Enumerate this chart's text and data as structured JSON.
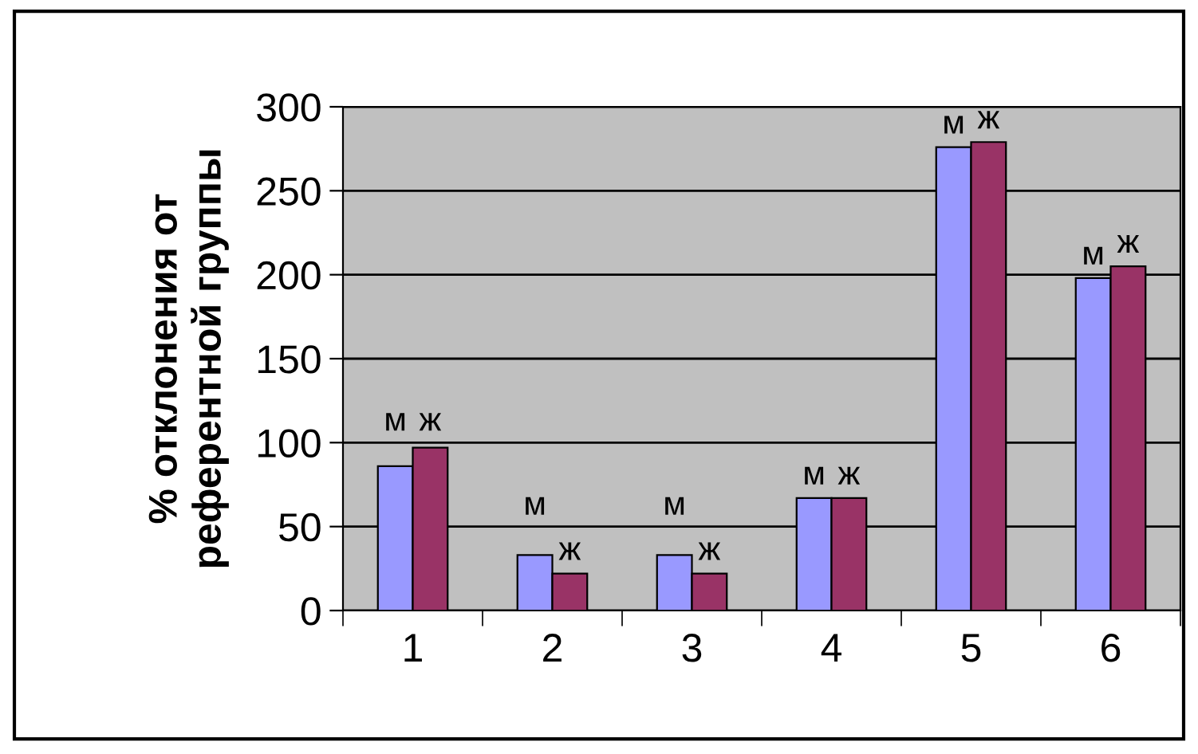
{
  "chart_data": {
    "type": "bar",
    "ylabel": "% отклонения от\nреферентной группы",
    "categories": [
      "1",
      "2",
      "3",
      "4",
      "5",
      "6"
    ],
    "series": [
      {
        "name": "м",
        "color": "#9999ff",
        "values": [
          86,
          33,
          33,
          67,
          276,
          198
        ]
      },
      {
        "name": "ж",
        "color": "#993366",
        "values": [
          97,
          22,
          22,
          67,
          279,
          205
        ]
      }
    ],
    "ylim": [
      0,
      300
    ],
    "yticks": [
      0,
      50,
      100,
      150,
      200,
      250,
      300
    ],
    "grid": "y",
    "legend": false
  }
}
